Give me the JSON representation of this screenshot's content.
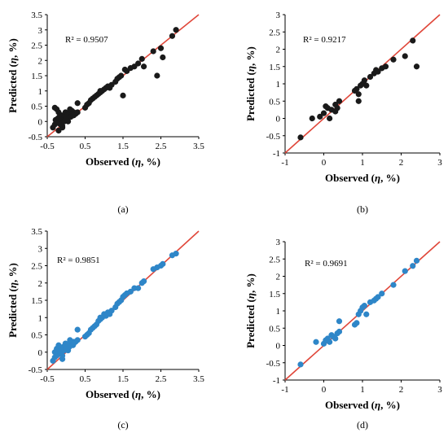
{
  "colors": {
    "dark": "#1a1a1a",
    "blue": "#2e86c8",
    "line": "#e0473a",
    "axis": "#000000"
  },
  "chart_data": [
    {
      "type": "scatter",
      "caption": "(a)",
      "r2": "R² = 0.9507",
      "xlabel_pre": "Observed (",
      "xlabel_sym": "η",
      "xlabel_post": ", %)",
      "ylabel_pre": "Predicted (",
      "ylabel_sym": "η",
      "ylabel_post": ", %)",
      "xlim": [
        -0.5,
        3.5
      ],
      "ylim": [
        -0.5,
        3.5
      ],
      "xticks": [
        "-0.5",
        "0.5",
        "1.5",
        "2.5",
        "3.5"
      ],
      "yticks": [
        "-0.5",
        "0",
        "0.5",
        "1",
        "1.5",
        "2",
        "2.5",
        "3",
        "3.5"
      ],
      "color": "#1a1a1a",
      "x": [
        -0.35,
        -0.3,
        -0.28,
        -0.25,
        -0.22,
        -0.2,
        -0.18,
        -0.15,
        -0.12,
        -0.1,
        -0.08,
        -0.05,
        -0.02,
        0.0,
        0.02,
        0.05,
        0.08,
        0.1,
        0.12,
        0.15,
        0.18,
        0.2,
        0.25,
        0.3,
        -0.3,
        -0.25,
        -0.2,
        -0.18,
        -0.15,
        -0.1,
        -0.05,
        0.0,
        0.1,
        0.2,
        0.5,
        0.55,
        0.6,
        0.65,
        0.7,
        0.75,
        0.8,
        0.85,
        0.9,
        0.95,
        1.0,
        1.05,
        1.1,
        1.15,
        1.2,
        1.3,
        1.35,
        1.4,
        1.45,
        1.5,
        1.55,
        1.6,
        1.7,
        1.8,
        1.9,
        2.0,
        2.05,
        2.3,
        2.4,
        2.5,
        2.55,
        2.8,
        2.9,
        -0.2,
        0.3,
        0.9
      ],
      "y": [
        -0.2,
        -0.1,
        0.05,
        0.0,
        0.1,
        -0.05,
        0.15,
        0.0,
        0.2,
        -0.15,
        0.1,
        0.05,
        0.3,
        0.1,
        0.2,
        0.0,
        0.25,
        0.3,
        0.15,
        0.35,
        0.2,
        0.3,
        0.25,
        0.6,
        0.45,
        0.4,
        0.3,
        0.1,
        -0.1,
        -0.2,
        0.0,
        0.15,
        0.4,
        0.2,
        0.45,
        0.55,
        0.6,
        0.7,
        0.75,
        0.8,
        0.85,
        0.9,
        0.95,
        1.0,
        1.05,
        1.1,
        1.15,
        1.1,
        1.2,
        1.3,
        1.4,
        1.45,
        1.5,
        0.85,
        1.7,
        1.65,
        1.75,
        1.8,
        1.9,
        2.05,
        1.8,
        2.3,
        1.5,
        2.4,
        2.1,
        2.8,
        3.0,
        -0.3,
        0.3,
        1.0
      ]
    },
    {
      "type": "scatter",
      "caption": "(b)",
      "r2": "R² = 0.9217",
      "xlabel_pre": "Observed (",
      "xlabel_sym": "η",
      "xlabel_post": ", %)",
      "ylabel_pre": "Predicted (",
      "ylabel_sym": "η",
      "ylabel_post": ", %)",
      "xlim": [
        -1,
        3
      ],
      "ylim": [
        -1,
        3
      ],
      "xticks": [
        "-1",
        "0",
        "1",
        "2",
        "3"
      ],
      "yticks": [
        "-1",
        "-0.5",
        "0",
        "0.5",
        "1",
        "1.5",
        "2",
        "2.5",
        "3"
      ],
      "color": "#1a1a1a",
      "x": [
        -0.6,
        -0.3,
        -0.1,
        0.0,
        0.05,
        0.1,
        0.2,
        0.3,
        0.3,
        0.35,
        0.4,
        0.8,
        0.85,
        0.9,
        0.95,
        1.0,
        1.05,
        1.1,
        1.2,
        1.3,
        1.35,
        1.4,
        1.5,
        1.6,
        1.8,
        2.1,
        2.3,
        2.4,
        0.9,
        0.15
      ],
      "y": [
        -0.55,
        0.0,
        0.05,
        0.15,
        0.35,
        0.3,
        0.25,
        0.2,
        0.4,
        0.3,
        0.5,
        0.8,
        0.85,
        0.5,
        0.95,
        1.0,
        1.1,
        0.95,
        1.2,
        1.3,
        1.4,
        1.35,
        1.45,
        1.5,
        1.7,
        1.8,
        2.25,
        1.5,
        0.7,
        0.0
      ]
    },
    {
      "type": "scatter",
      "caption": "(c)",
      "r2": "R² = 0.9851",
      "xlabel_pre": "Observed (",
      "xlabel_sym": "η",
      "xlabel_post": ", %)",
      "ylabel_pre": "Predicted (",
      "ylabel_sym": "η",
      "ylabel_post": ", %)",
      "xlim": [
        -0.5,
        3.5
      ],
      "ylim": [
        -0.5,
        3.5
      ],
      "xticks": [
        "-0.5",
        "0.5",
        "1.5",
        "2.5",
        "3.5"
      ],
      "yticks": [
        "-0.5",
        "0",
        "0.5",
        "1",
        "1.5",
        "2",
        "2.5",
        "3",
        "3.5"
      ],
      "color": "#2e86c8",
      "x": [
        -0.35,
        -0.3,
        -0.28,
        -0.25,
        -0.22,
        -0.2,
        -0.18,
        -0.15,
        -0.12,
        -0.1,
        -0.08,
        -0.05,
        -0.02,
        0.0,
        0.02,
        0.05,
        0.08,
        0.1,
        0.12,
        0.15,
        0.18,
        0.2,
        0.25,
        0.3,
        -0.3,
        -0.25,
        -0.2,
        -0.15,
        -0.1,
        0.0,
        0.1,
        0.2,
        0.5,
        0.55,
        0.6,
        0.65,
        0.7,
        0.75,
        0.8,
        0.85,
        0.9,
        0.95,
        1.0,
        1.05,
        1.1,
        1.15,
        1.2,
        1.3,
        1.35,
        1.4,
        1.45,
        1.5,
        1.55,
        1.6,
        1.7,
        1.8,
        1.9,
        2.0,
        2.05,
        2.3,
        2.4,
        2.5,
        2.55,
        2.8,
        2.9,
        0.3,
        0.9
      ],
      "y": [
        -0.25,
        -0.15,
        0.0,
        -0.1,
        0.1,
        -0.05,
        0.05,
        0.0,
        0.1,
        -0.2,
        0.15,
        0.05,
        0.25,
        0.1,
        0.2,
        0.05,
        0.15,
        0.3,
        0.2,
        0.3,
        0.2,
        0.3,
        0.3,
        0.65,
        0.0,
        0.1,
        0.2,
        0.05,
        -0.1,
        0.15,
        0.35,
        0.25,
        0.45,
        0.5,
        0.55,
        0.65,
        0.7,
        0.75,
        0.8,
        0.9,
        0.95,
        1.0,
        1.1,
        1.05,
        1.15,
        1.1,
        1.2,
        1.3,
        1.4,
        1.45,
        1.5,
        1.6,
        1.65,
        1.7,
        1.75,
        1.85,
        1.85,
        2.0,
        2.05,
        2.4,
        2.45,
        2.5,
        2.55,
        2.8,
        2.85,
        0.35,
        1.0
      ]
    },
    {
      "type": "scatter",
      "caption": "(d)",
      "r2": "R² = 0.9691",
      "xlabel_pre": "Observed (",
      "xlabel_sym": "η",
      "xlabel_post": ", %)",
      "ylabel_pre": "Predicted (",
      "ylabel_sym": "η",
      "ylabel_post": ", %)",
      "xlim": [
        -1,
        3
      ],
      "ylim": [
        -1,
        3
      ],
      "xticks": [
        "-1",
        "0",
        "1",
        "2",
        "3"
      ],
      "yticks": [
        "-1",
        "-0.5",
        "0",
        "0.5",
        "1",
        "1.5",
        "2",
        "2.5",
        "3"
      ],
      "color": "#2e86c8",
      "x": [
        -0.6,
        -0.2,
        0.0,
        0.05,
        0.1,
        0.2,
        0.25,
        0.3,
        0.35,
        0.4,
        0.4,
        0.8,
        0.85,
        0.9,
        0.95,
        1.0,
        1.05,
        1.1,
        1.2,
        1.3,
        1.35,
        1.4,
        1.5,
        1.8,
        2.1,
        2.3,
        2.4,
        0.15
      ],
      "y": [
        -0.55,
        0.1,
        0.05,
        0.15,
        0.2,
        0.3,
        0.25,
        0.2,
        0.35,
        0.7,
        0.4,
        0.6,
        0.65,
        0.9,
        1.0,
        1.1,
        1.15,
        0.9,
        1.25,
        1.3,
        1.35,
        1.4,
        1.5,
        1.75,
        2.15,
        2.3,
        2.45,
        0.1
      ]
    }
  ]
}
